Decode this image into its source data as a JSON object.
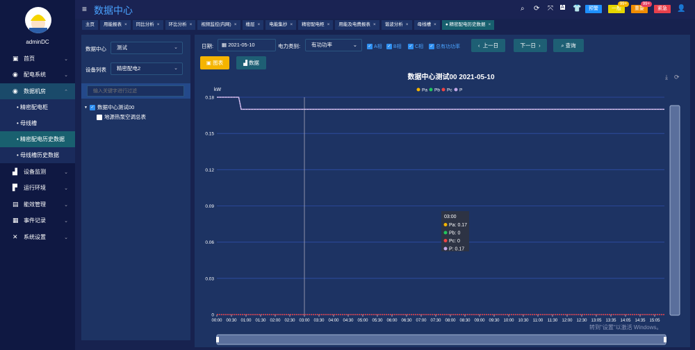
{
  "sidebar": {
    "username": "adminDC",
    "items": [
      {
        "label": "首页",
        "icon": "monitor-icon"
      },
      {
        "label": "配电系统",
        "icon": "power-icon"
      },
      {
        "label": "数据机房",
        "icon": "power-icon"
      },
      {
        "label": "设备监测",
        "icon": "bar-chart-icon"
      },
      {
        "label": "运行环境",
        "icon": "camera-icon"
      },
      {
        "label": "能效管理",
        "icon": "chart-icon"
      },
      {
        "label": "事件记录",
        "icon": "document-icon"
      },
      {
        "label": "系统设置",
        "icon": "tools-icon"
      }
    ],
    "subitems": [
      "精密配电柜",
      "母线槽",
      "精密配电历史数据",
      "母线槽历史数据"
    ],
    "active_sub": "精密配电历史数据"
  },
  "header": {
    "title": "数据中心",
    "buttons": {
      "warn": "预警",
      "general": "一般",
      "important": "重要",
      "urgent": "紧急"
    },
    "badges": {
      "general": "99+",
      "important": "99+"
    }
  },
  "tabs": [
    {
      "label": "主页"
    },
    {
      "label": "用能报表"
    },
    {
      "label": "同比分析"
    },
    {
      "label": "环比分析"
    },
    {
      "label": "视频监控(内网)"
    },
    {
      "label": "楼层"
    },
    {
      "label": "电能集抄"
    },
    {
      "label": "精密配电柜"
    },
    {
      "label": "用能及电费报表"
    },
    {
      "label": "谐波分析"
    },
    {
      "label": "母线槽"
    },
    {
      "label": "精密配电历史数据",
      "active": true
    }
  ],
  "left": {
    "dc_label": "数据中心",
    "dc_value": "测试",
    "dev_label": "设备列表",
    "dev_value": "精密配电2",
    "filter_placeholder": "输入关键字进行过滤",
    "tree": [
      {
        "label": "数据中心测试00",
        "checked": true
      },
      {
        "label": "地源热泵空调总表",
        "checked": false
      }
    ]
  },
  "toolbar": {
    "date_label": "日期:",
    "date_value": "2021-05-10",
    "type_label": "电力类别:",
    "type_value": "有功功率",
    "checks": [
      "A相",
      "B相",
      "C相",
      "总有功功率"
    ],
    "prev": "上一日",
    "next": "下一日",
    "query": "查询",
    "chart_tab": "图表",
    "data_tab": "数据"
  },
  "chart_data": {
    "type": "line",
    "title": "数据中心测试00  2021-05-10",
    "ylabel": "kW",
    "ylim": [
      0,
      0.18
    ],
    "yticks": [
      "0",
      "0.03",
      "0.06",
      "0.09",
      "0.12",
      "0.15",
      "0.18"
    ],
    "xticks": [
      "00:00",
      "00:30",
      "01:00",
      "01:30",
      "02:00",
      "02:30",
      "03:00",
      "03:30",
      "04:00",
      "04:30",
      "05:00",
      "05:30",
      "06:00",
      "06:30",
      "07:00",
      "07:30",
      "08:00",
      "08:30",
      "09:00",
      "09:30",
      "10:00",
      "10:30",
      "11:00",
      "11:30",
      "12:00",
      "12:30",
      "13:05",
      "13:35",
      "14:05",
      "14:35",
      "15:05"
    ],
    "legend": [
      "Pa",
      "Pb",
      "Pc",
      "P"
    ],
    "legend_placement": "top-center",
    "colors": {
      "Pa": "#f5b400",
      "Pb": "#22c55e",
      "Pc": "#ef4444",
      "P": "#c4a8e8"
    },
    "series": [
      {
        "name": "P",
        "points": [
          [
            "00:00",
            0.18
          ],
          [
            "00:45",
            0.18
          ],
          [
            "00:50",
            0.17
          ],
          [
            "15:25",
            0.17
          ]
        ]
      },
      {
        "name": "Pc",
        "points": [
          [
            "00:00",
            0
          ],
          [
            "15:25",
            0
          ]
        ]
      }
    ],
    "tooltip": {
      "time": "03:00",
      "rows": [
        "Pa: 0.17",
        "Pb: 0",
        "Pc: 0",
        "P: 0.17"
      ]
    }
  },
  "watermark": "转到\"设置\"以激活 Windows。"
}
